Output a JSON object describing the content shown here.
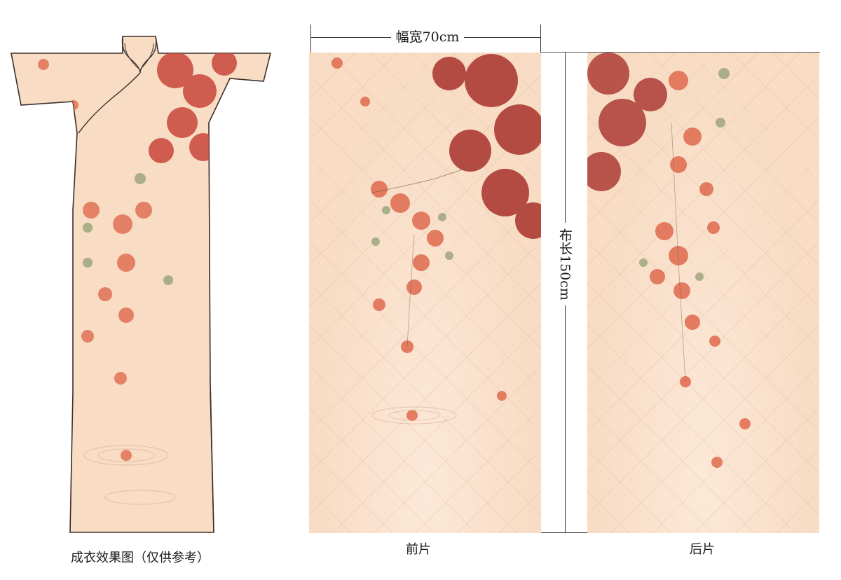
{
  "labels": {
    "width": "幅宽70cm",
    "length": "布长150cm",
    "dress_caption": "成衣效果图（仅供参考）",
    "front_caption": "前片",
    "back_caption": "后片"
  },
  "colors": {
    "fabric": "#f8dcc4",
    "leaf_red": "#d9543a",
    "leaf_dark": "#a8322c",
    "leaf_green": "#8a9a6e",
    "outline": "#3a2e2a"
  }
}
